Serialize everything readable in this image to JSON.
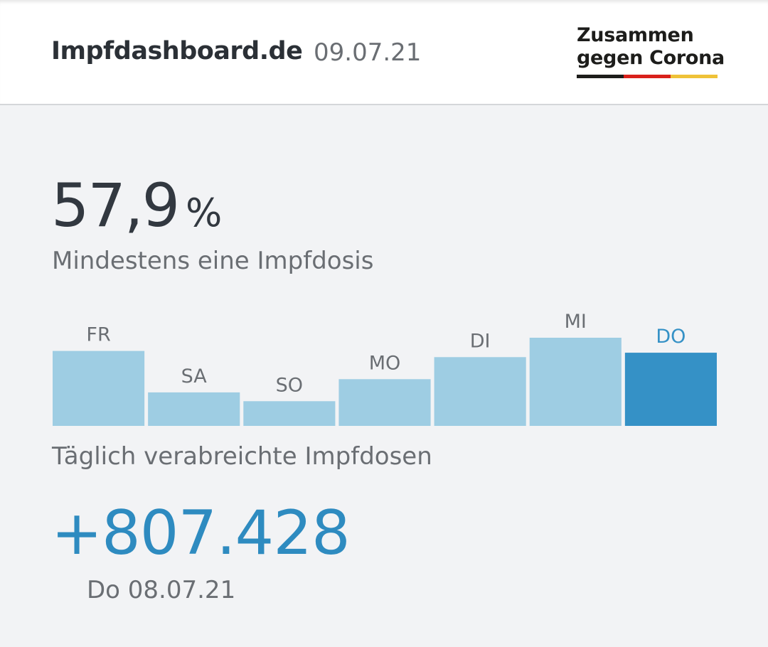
{
  "header": {
    "site_title": "Impfdashboard.de",
    "date": "09.07.21",
    "logo_line1": "Zusammen",
    "logo_line2": "gegen Corona"
  },
  "stat": {
    "value": "57,9",
    "unit": "%",
    "label": "Mindestens eine Impfdosis"
  },
  "chart_data": {
    "type": "bar",
    "categories": [
      "FR",
      "SA",
      "SO",
      "MO",
      "DI",
      "MI",
      "DO"
    ],
    "values": [
      0.85,
      0.38,
      0.28,
      0.53,
      0.78,
      1.0,
      0.83
    ],
    "highlight_index": 6,
    "colors": {
      "bar": "#9ecde3",
      "highlight": "#3591c6",
      "label": "#6a6e73",
      "highlight_label": "#3591c6"
    },
    "caption": "Täglich verabreichte Impfdosen"
  },
  "daily": {
    "value": "+807.428",
    "date": "Do 08.07.21"
  }
}
